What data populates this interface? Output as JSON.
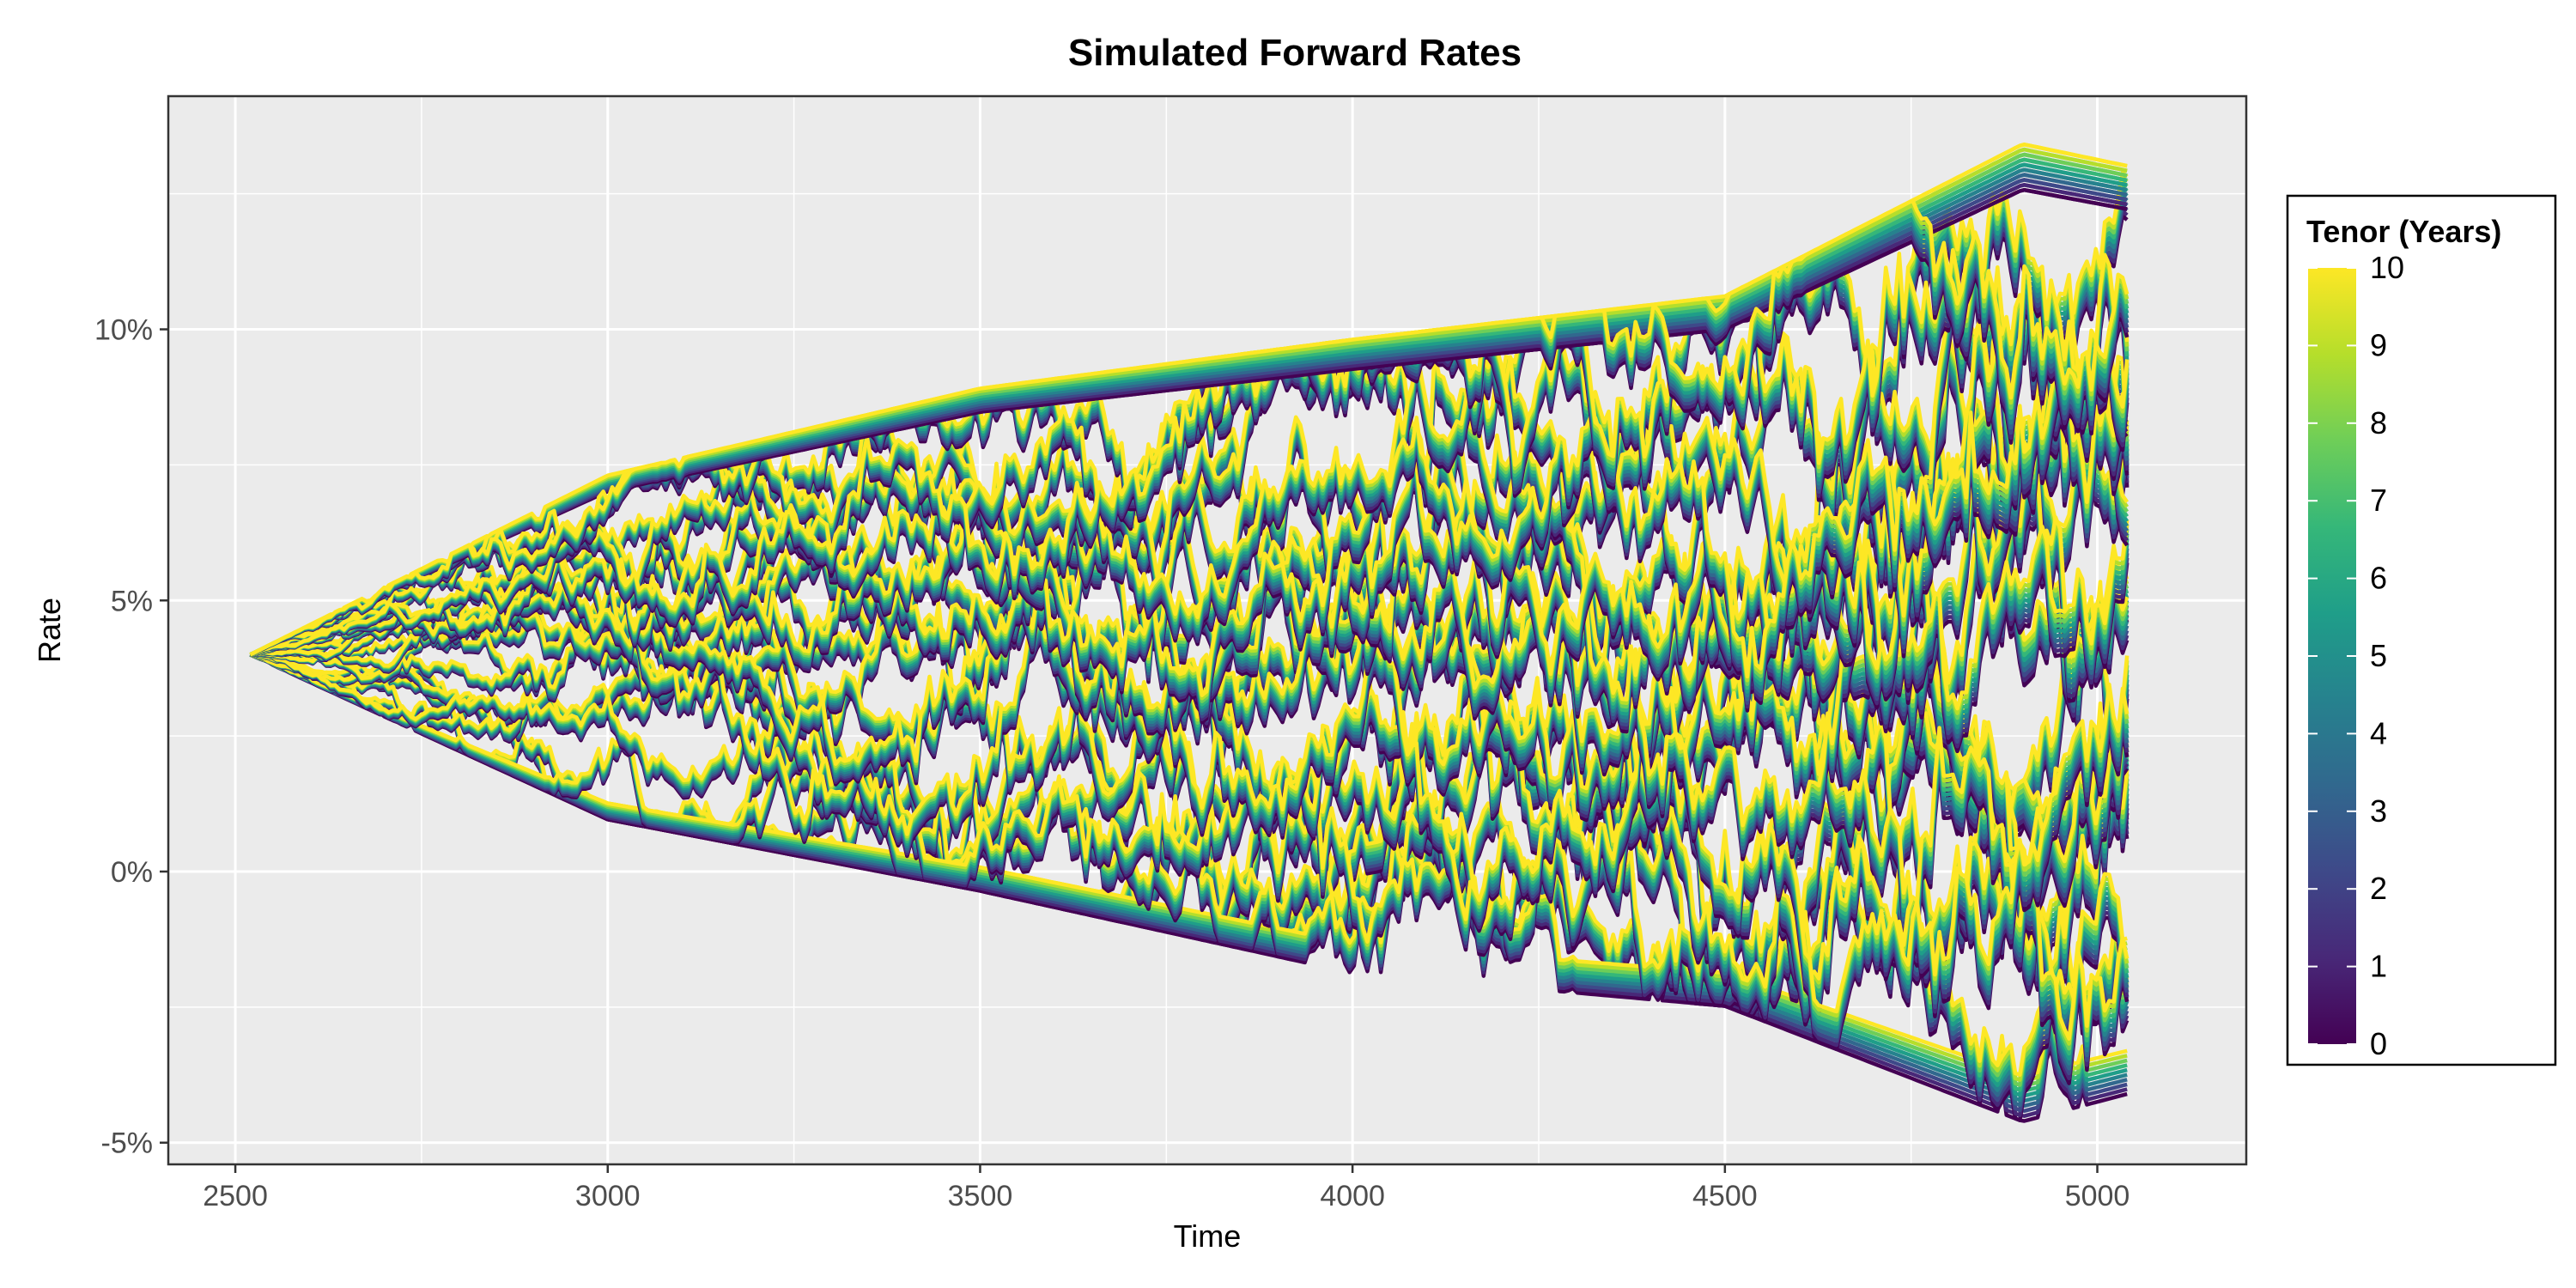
{
  "chart_data": {
    "type": "line",
    "title": "Simulated Forward Rates",
    "xlabel": "Time",
    "ylabel": "Rate",
    "xlim": [
      2410,
      5200
    ],
    "ylim": [
      -5.4,
      14.3
    ],
    "x_ticks": [
      2500,
      3000,
      3500,
      4000,
      4500,
      5000
    ],
    "x_tick_labels": [
      "2500",
      "3000",
      "3500",
      "4000",
      "4500",
      "5000"
    ],
    "y_ticks": [
      -5,
      0,
      5,
      10
    ],
    "y_tick_labels": [
      "-5%",
      "0%",
      "5%",
      "10%"
    ],
    "grid": true,
    "panel_background": "#ebebeb",
    "grid_color": "#ffffff",
    "x_start": 2520,
    "x_end": 5040,
    "start_rate": 4.0,
    "n_paths": 24,
    "approx_envelope": {
      "x": [
        2520,
        3000,
        3500,
        4000,
        4500,
        4900,
        5040
      ],
      "upper": [
        4.0,
        7.3,
        8.9,
        9.8,
        10.6,
        13.4,
        13.0
      ],
      "lower": [
        4.0,
        1.0,
        -0.3,
        -1.8,
        -2.4,
        -4.5,
        -4.0
      ]
    },
    "legend": {
      "title": "Tenor (Years)",
      "placement": "right",
      "min": 0,
      "max": 10,
      "ticks": [
        "0",
        "1",
        "2",
        "3",
        "4",
        "5",
        "6",
        "7",
        "8",
        "9",
        "10"
      ],
      "colormap": "viridis",
      "colors": [
        "#440154",
        "#482878",
        "#3e4989",
        "#31688e",
        "#26828e",
        "#1f9e89",
        "#35b779",
        "#6ece58",
        "#b5de2b",
        "#fde725"
      ]
    }
  }
}
